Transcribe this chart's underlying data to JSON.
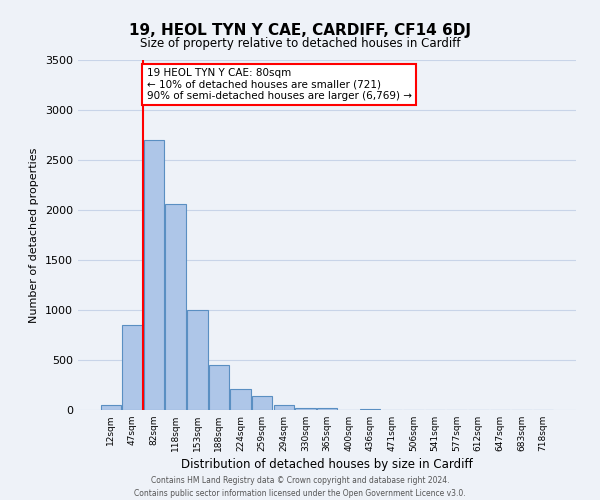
{
  "title": "19, HEOL TYN Y CAE, CARDIFF, CF14 6DJ",
  "subtitle": "Size of property relative to detached houses in Cardiff",
  "xlabel": "Distribution of detached houses by size in Cardiff",
  "ylabel": "Number of detached properties",
  "bar_labels": [
    "12sqm",
    "47sqm",
    "82sqm",
    "118sqm",
    "153sqm",
    "188sqm",
    "224sqm",
    "259sqm",
    "294sqm",
    "330sqm",
    "365sqm",
    "400sqm",
    "436sqm",
    "471sqm",
    "506sqm",
    "541sqm",
    "577sqm",
    "612sqm",
    "647sqm",
    "683sqm",
    "718sqm"
  ],
  "bar_values": [
    55,
    850,
    2700,
    2060,
    1005,
    455,
    215,
    145,
    55,
    20,
    20,
    0,
    15,
    0,
    0,
    0,
    0,
    0,
    0,
    0,
    0
  ],
  "bar_color": "#aec6e8",
  "bar_edge_color": "#5a8fc2",
  "ylim": [
    0,
    3500
  ],
  "yticks": [
    0,
    500,
    1000,
    1500,
    2000,
    2500,
    3000,
    3500
  ],
  "red_line_index": 2,
  "annotation_title": "19 HEOL TYN Y CAE: 80sqm",
  "annotation_line1": "← 10% of detached houses are smaller (721)",
  "annotation_line2": "90% of semi-detached houses are larger (6,769) →",
  "footer_line1": "Contains HM Land Registry data © Crown copyright and database right 2024.",
  "footer_line2": "Contains public sector information licensed under the Open Government Licence v3.0.",
  "bg_color": "#eef2f8",
  "plot_bg_color": "#eef2f8",
  "grid_color": "#c8d4e8"
}
